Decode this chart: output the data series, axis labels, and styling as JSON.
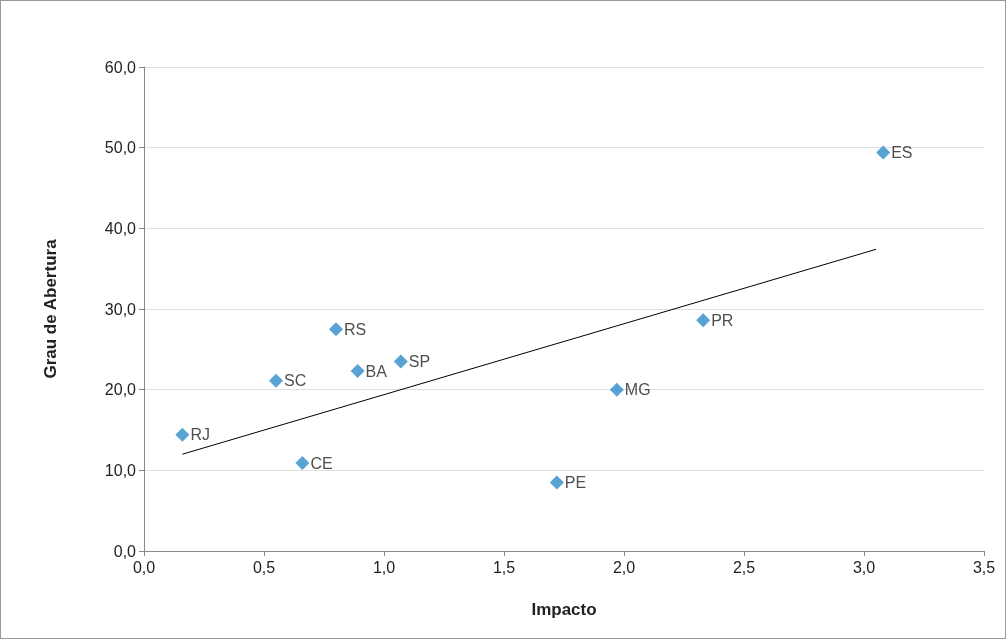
{
  "chart_data": {
    "type": "scatter",
    "xlabel": "Impacto",
    "ylabel": "Grau de Abertura",
    "series": [
      {
        "color": "#2e8bc9",
        "x": [
          0.16,
          0.55,
          0.66,
          0.8,
          0.89,
          1.07,
          1.72,
          1.97,
          2.33,
          3.08
        ],
        "values": [
          14.4,
          21.1,
          10.9,
          27.5,
          22.3,
          23.5,
          8.5,
          20.0,
          28.6,
          49.4
        ]
      },
      {
        "type": "line",
        "color": "#000000",
        "x": [
          0.16,
          3.05
        ],
        "values": [
          12.0,
          37.4
        ],
        "marker": "none"
      }
    ],
    "annotations": [
      {
        "text": "RJ",
        "x": 0.16,
        "y": 14.4
      },
      {
        "text": "SC",
        "x": 0.55,
        "y": 21.1
      },
      {
        "text": "CE",
        "x": 0.66,
        "y": 10.9
      },
      {
        "text": "RS",
        "x": 0.8,
        "y": 27.5
      },
      {
        "text": "BA",
        "x": 0.89,
        "y": 22.3
      },
      {
        "text": "SP",
        "x": 1.07,
        "y": 23.5
      },
      {
        "text": "PE",
        "x": 1.72,
        "y": 8.5
      },
      {
        "text": "MG",
        "x": 1.97,
        "y": 20.0
      },
      {
        "text": "PR",
        "x": 2.33,
        "y": 28.6
      },
      {
        "text": "ES",
        "x": 3.08,
        "y": 49.4
      }
    ],
    "marker": "diamond",
    "grid": "y",
    "xlim": [
      0,
      3.5
    ],
    "xticks": [
      {
        "value": 0,
        "label": "0,0"
      },
      {
        "value": 0.5,
        "label": "0,5"
      },
      {
        "value": 1,
        "label": "1,0"
      },
      {
        "value": 1.5,
        "label": "1,5"
      },
      {
        "value": 2,
        "label": "2,0"
      },
      {
        "value": 2.5,
        "label": "2,5"
      },
      {
        "value": 3,
        "label": "3,0"
      },
      {
        "value": 3.5,
        "label": "3,5"
      }
    ],
    "ylim": [
      0,
      60
    ],
    "yticks": [
      {
        "value": 0,
        "label": "0,0"
      },
      {
        "value": 10,
        "label": "10,0"
      },
      {
        "value": 20,
        "label": "20,0"
      },
      {
        "value": 30,
        "label": "30,0"
      },
      {
        "value": 40,
        "label": "40,0"
      },
      {
        "value": 50,
        "label": "50,0"
      },
      {
        "value": 60,
        "label": "60,0"
      }
    ]
  }
}
